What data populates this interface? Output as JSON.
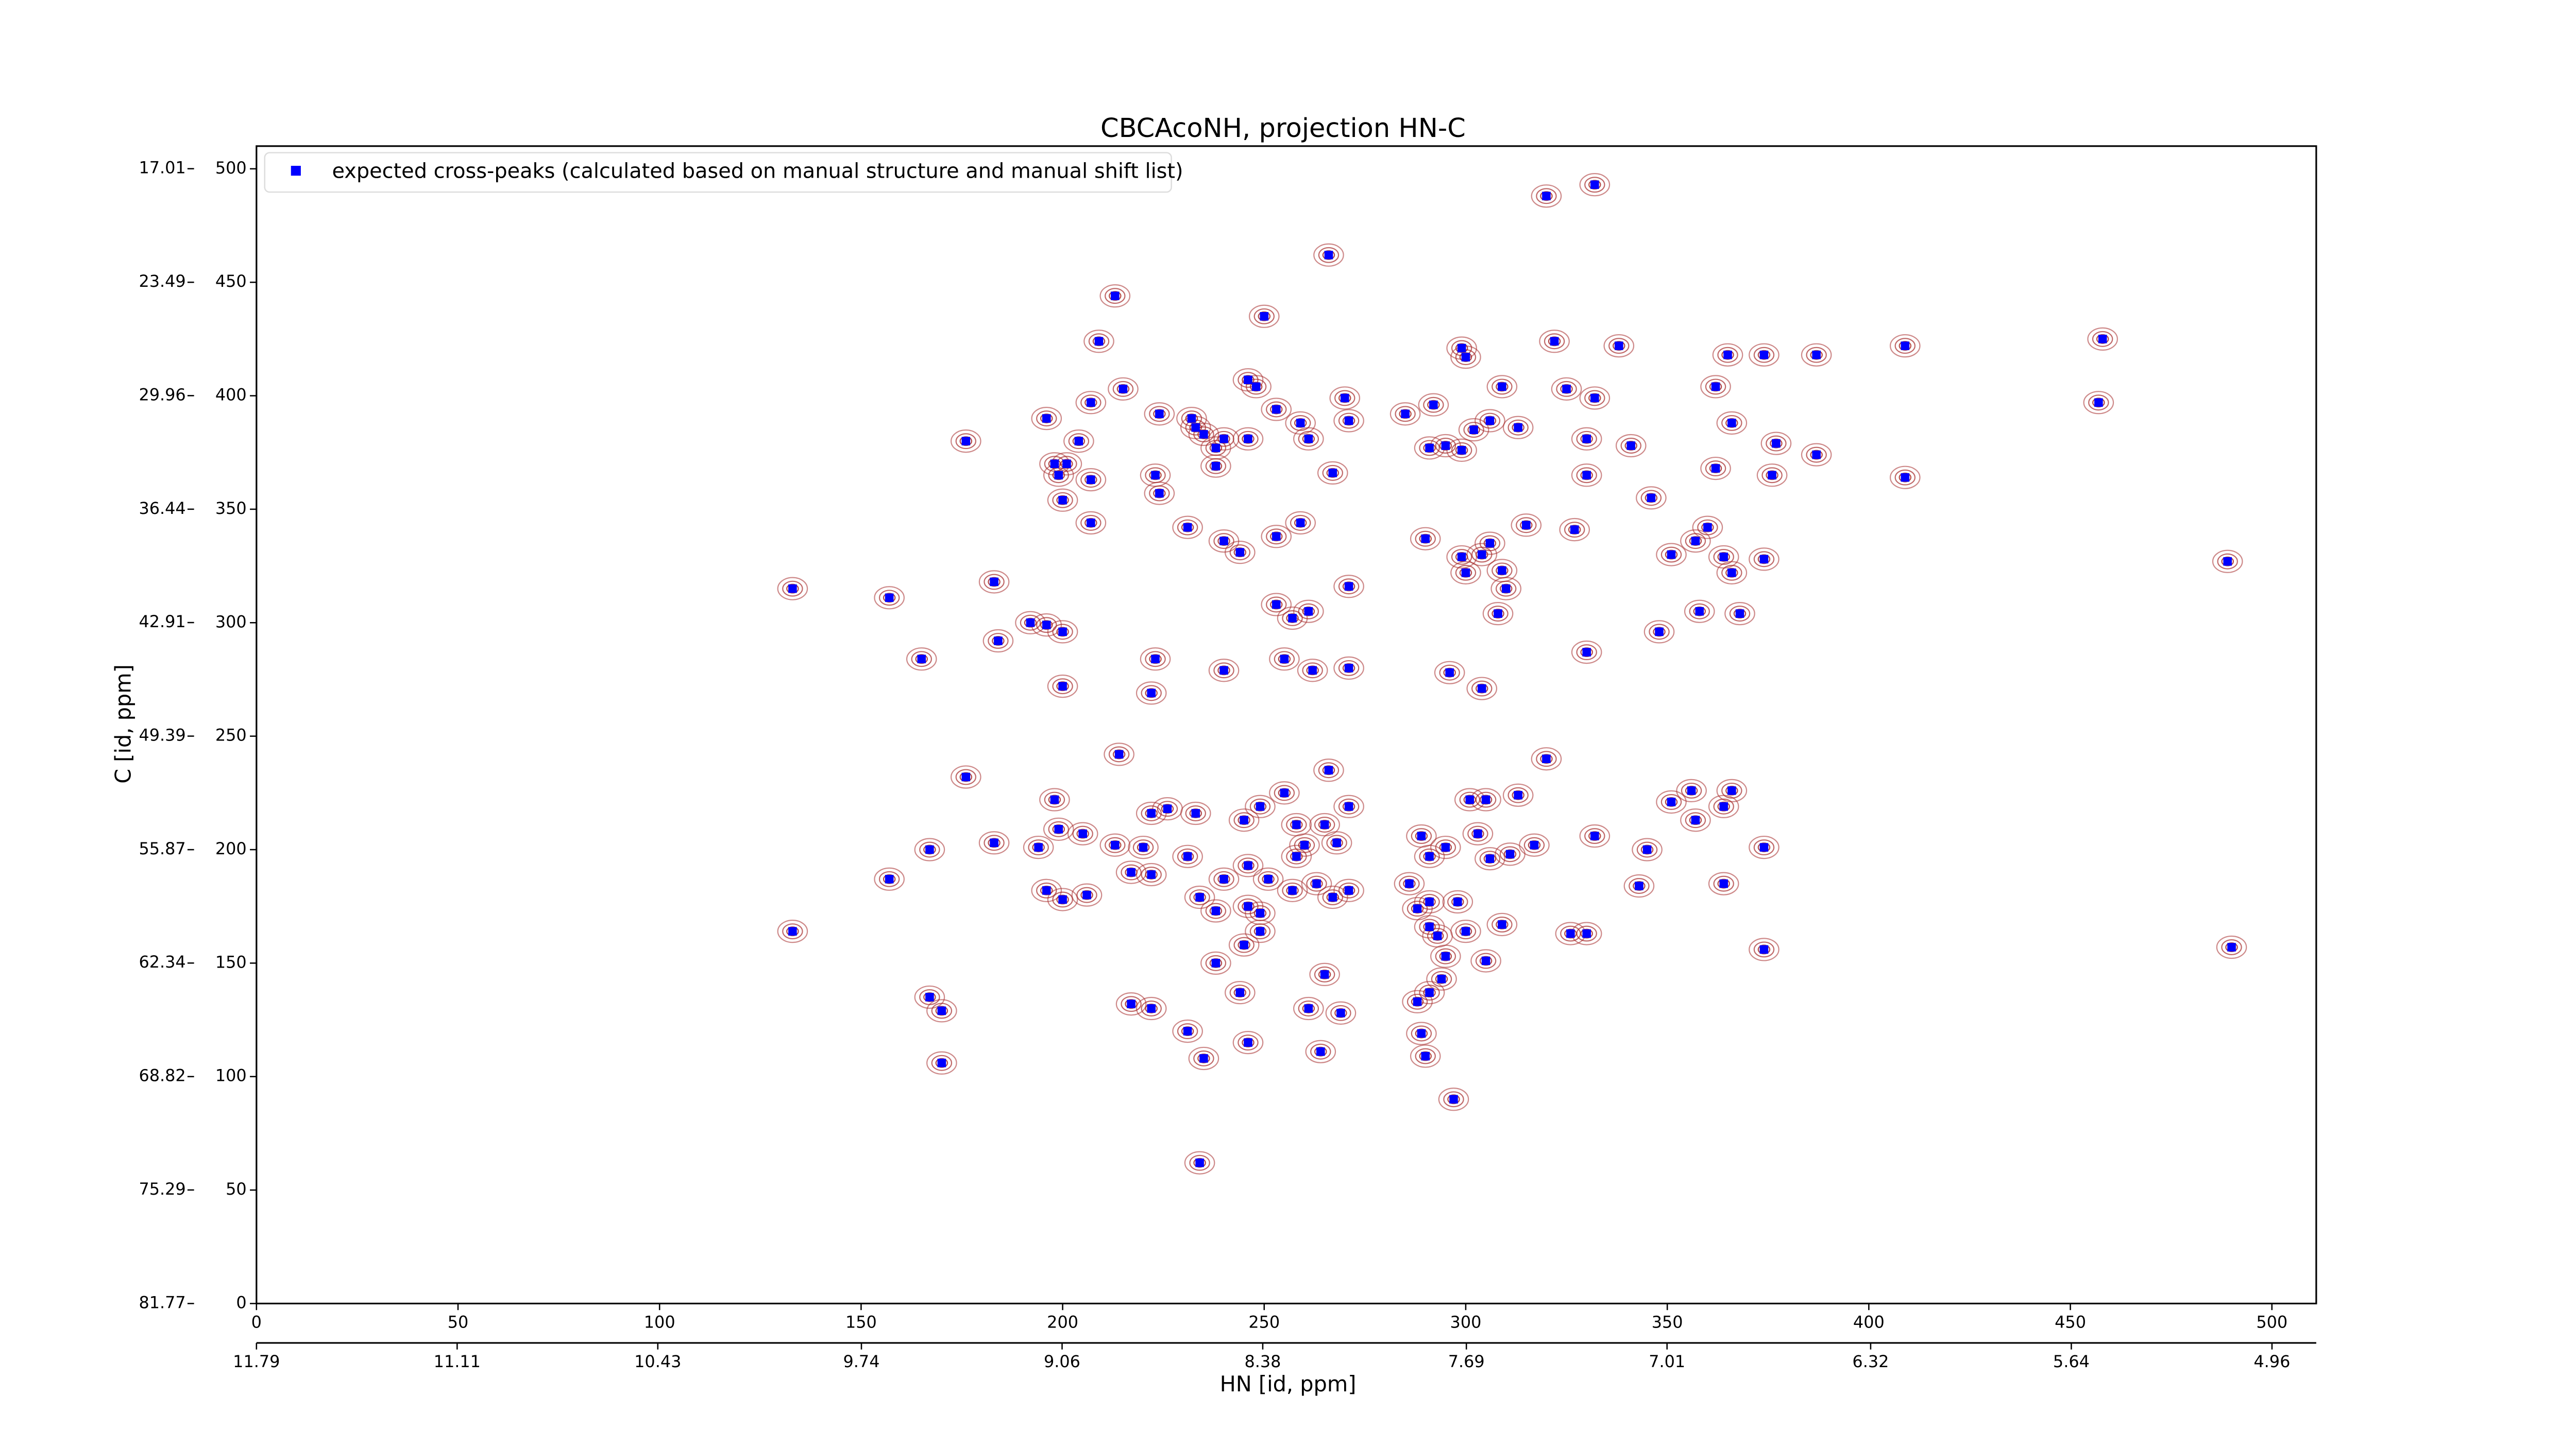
{
  "chart_data": {
    "type": "scatter",
    "title": "CBCAcoNH, projection HN-C",
    "xlabel": "HN [id, ppm]",
    "ylabel": "C [id, ppm]",
    "xlim": [
      0,
      511
    ],
    "ylim": [
      0,
      510
    ],
    "xticks": [
      0,
      50,
      100,
      150,
      200,
      250,
      300,
      350,
      400,
      450,
      500
    ],
    "yticks": [
      0,
      50,
      100,
      150,
      200,
      250,
      300,
      350,
      400,
      450,
      500
    ],
    "x2lim": [
      11.79,
      4.81
    ],
    "x2ticks": [
      11.79,
      11.11,
      10.43,
      9.74,
      9.06,
      8.38,
      7.69,
      7.01,
      6.32,
      5.64,
      4.96
    ],
    "y2lim": [
      81.77,
      15.72
    ],
    "y2ticks": [
      81.77,
      75.29,
      68.82,
      62.34,
      55.87,
      49.39,
      42.91,
      36.44,
      29.96,
      23.49,
      17.01
    ],
    "legend": "upper left",
    "contour_color": "#a52a2a",
    "series": [
      {
        "name": "expected cross-peaks (calculated based on manual structure and manual shift list)",
        "color": "#0000ff",
        "x": [
          320,
          332,
          266,
          213,
          250,
          209,
          299,
          300,
          322,
          338,
          365,
          374,
          387,
          409,
          458,
          457,
          362,
          366,
          377,
          387,
          376,
          409,
          362,
          246,
          248,
          215,
          207,
          196,
          224,
          232,
          233,
          235,
          238,
          240,
          246,
          253,
          259,
          261,
          270,
          271,
          267,
          285,
          292,
          291,
          295,
          299,
          302,
          306,
          313,
          309,
          325,
          332,
          330,
          330,
          341,
          176,
          204,
          198,
          201,
          199,
          207,
          200,
          207,
          224,
          231,
          223,
          238,
          240,
          244,
          253,
          259,
          290,
          299,
          304,
          306,
          300,
          309,
          310,
          308,
          315,
          327,
          346,
          351,
          357,
          360,
          364,
          366,
          374,
          368,
          358,
          348,
          489,
          133,
          157,
          183,
          184,
          192,
          196,
          200,
          165,
          223,
          222,
          200,
          240,
          253,
          257,
          261,
          255,
          262,
          271,
          296,
          304,
          271,
          330,
          320,
          266,
          214,
          176,
          198,
          222,
          226,
          233,
          245,
          249,
          255,
          258,
          265,
          271,
          260,
          183,
          167,
          194,
          199,
          205,
          213,
          220,
          222,
          231,
          240,
          246,
          251,
          258,
          268,
          289,
          291,
          295,
          301,
          305,
          313,
          303,
          306,
          311,
          317,
          332,
          345,
          351,
          356,
          357,
          364,
          366,
          364,
          374,
          374,
          490,
          157,
          196,
          200,
          206,
          217,
          234,
          238,
          246,
          249,
          257,
          263,
          267,
          271,
          286,
          288,
          291,
          298,
          291,
          293,
          295,
          300,
          305,
          309,
          326,
          330,
          343,
          133,
          167,
          170,
          238,
          245,
          249,
          244,
          265,
          217,
          222,
          231,
          246,
          235,
          261,
          269,
          288,
          291,
          294,
          289,
          290,
          264,
          297,
          170,
          234
        ],
        "values": [
          488,
          493,
          462,
          444,
          435,
          424,
          421,
          417,
          424,
          422,
          418,
          418,
          418,
          422,
          425,
          397,
          404,
          388,
          379,
          374,
          365,
          364,
          368,
          407,
          404,
          403,
          397,
          390,
          392,
          390,
          386,
          383,
          377,
          381,
          381,
          394,
          388,
          381,
          399,
          389,
          366,
          392,
          396,
          377,
          378,
          376,
          385,
          389,
          386,
          404,
          403,
          399,
          381,
          365,
          378,
          380,
          380,
          370,
          370,
          365,
          363,
          354,
          344,
          357,
          342,
          365,
          369,
          336,
          331,
          338,
          344,
          337,
          329,
          330,
          335,
          322,
          323,
          315,
          304,
          343,
          341,
          355,
          330,
          336,
          342,
          329,
          322,
          328,
          304,
          305,
          296,
          327,
          315,
          311,
          318,
          292,
          300,
          299,
          296,
          284,
          284,
          269,
          272,
          279,
          308,
          302,
          305,
          284,
          279,
          280,
          278,
          271,
          316,
          287,
          240,
          235,
          242,
          232,
          222,
          216,
          218,
          216,
          213,
          219,
          225,
          211,
          211,
          219,
          202,
          203,
          200,
          201,
          209,
          207,
          202,
          201,
          189,
          197,
          187,
          193,
          187,
          197,
          203,
          206,
          197,
          201,
          222,
          222,
          224,
          207,
          196,
          198,
          202,
          206,
          200,
          221,
          226,
          213,
          219,
          226,
          185,
          201,
          156,
          157,
          187,
          182,
          178,
          180,
          190,
          179,
          173,
          175,
          172,
          182,
          185,
          179,
          182,
          185,
          174,
          177,
          177,
          166,
          162,
          153,
          164,
          151,
          167,
          163,
          163,
          184,
          164,
          135,
          129,
          150,
          158,
          164,
          137,
          145,
          132,
          130,
          120,
          115,
          108,
          130,
          128,
          133,
          137,
          143,
          119,
          109,
          111,
          90,
          106,
          62
        ]
      }
    ]
  }
}
